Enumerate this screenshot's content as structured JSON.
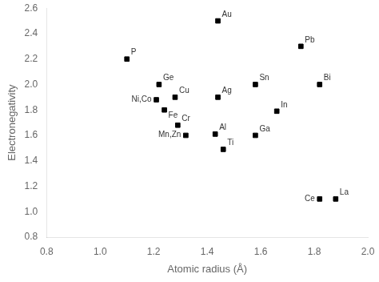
{
  "chart_data": {
    "type": "scatter",
    "x": [
      1.44,
      1.1,
      1.75,
      1.22,
      1.21,
      1.28,
      1.44,
      1.24,
      1.29,
      1.32,
      1.43,
      1.46,
      1.58,
      1.58,
      1.66,
      1.82,
      1.82,
      1.88
    ],
    "values": [
      2.5,
      2.2,
      2.3,
      2.0,
      1.88,
      1.9,
      1.9,
      1.8,
      1.68,
      1.6,
      1.61,
      1.49,
      2.0,
      1.6,
      1.79,
      2.0,
      1.1,
      1.1
    ],
    "annotations": [
      {
        "text": "Au",
        "x": 1.44,
        "y": 2.5
      },
      {
        "text": "P",
        "x": 1.1,
        "y": 2.2
      },
      {
        "text": "Pb",
        "x": 1.75,
        "y": 2.3
      },
      {
        "text": "Ge",
        "x": 1.22,
        "y": 2.0
      },
      {
        "text": "Ni,Co",
        "x": 1.21,
        "y": 1.88
      },
      {
        "text": "Cu",
        "x": 1.28,
        "y": 1.9
      },
      {
        "text": "Ag",
        "x": 1.44,
        "y": 1.9
      },
      {
        "text": "Fe",
        "x": 1.24,
        "y": 1.8
      },
      {
        "text": "Cr",
        "x": 1.29,
        "y": 1.68
      },
      {
        "text": "Mn,Zn",
        "x": 1.32,
        "y": 1.6
      },
      {
        "text": "Al",
        "x": 1.43,
        "y": 1.61
      },
      {
        "text": "Ti",
        "x": 1.46,
        "y": 1.49
      },
      {
        "text": "Sn",
        "x": 1.58,
        "y": 2.0
      },
      {
        "text": "Ga",
        "x": 1.58,
        "y": 1.6
      },
      {
        "text": "In",
        "x": 1.66,
        "y": 1.79
      },
      {
        "text": "Bi",
        "x": 1.82,
        "y": 2.0
      },
      {
        "text": "Ce",
        "x": 1.82,
        "y": 1.1
      },
      {
        "text": "La",
        "x": 1.88,
        "y": 1.1
      }
    ],
    "xlabel": "Atomic radius (Å)",
    "ylabel": "Electronegativity",
    "xlim": [
      0.8,
      2.0
    ],
    "ylim": [
      0.8,
      2.6
    ],
    "xticks": [
      0.8,
      {
        "value": 1,
        "label": "1.0"
      },
      1.2,
      1.4,
      1.6,
      1.8,
      {
        "value": 2,
        "label": "2.0"
      }
    ],
    "yticks": [
      0.8,
      {
        "value": 1,
        "label": "1.0"
      },
      1.2,
      1.4,
      1.6,
      1.8,
      {
        "value": 2,
        "label": "2.0"
      },
      2.2,
      2.4,
      2.6
    ],
    "marker": "square",
    "color": "black",
    "grid": false
  }
}
